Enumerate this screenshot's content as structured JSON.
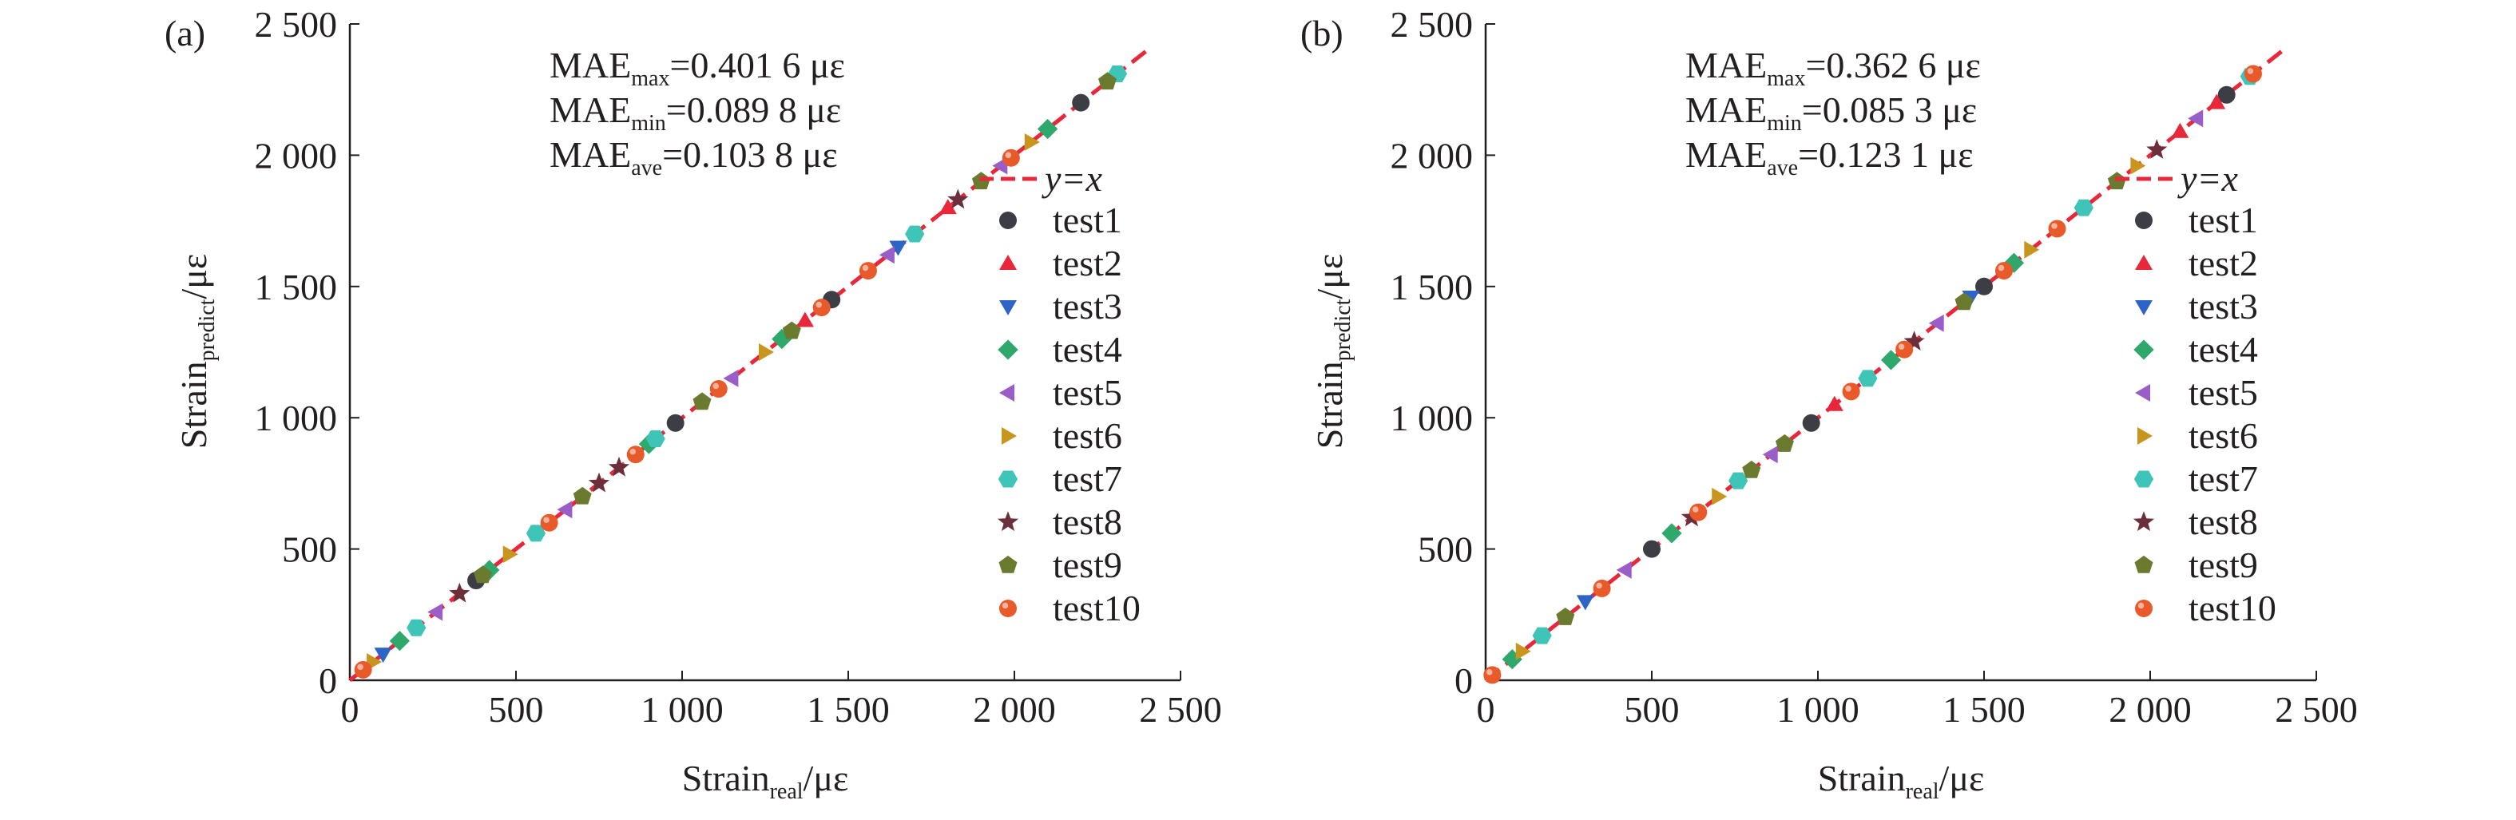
{
  "figure": {
    "panels": [
      {
        "panel_label": "(a)",
        "stats": [
          {
            "base": "MAE",
            "sub": "max",
            "value": "=0.401 6 με"
          },
          {
            "base": "MAE",
            "sub": "min",
            "value": "=0.089 8 με"
          },
          {
            "base": "MAE",
            "sub": "ave",
            "value": "=0.103 8 με"
          }
        ],
        "xlabel": {
          "base": "Strain",
          "sub": "real",
          "unit": "/με"
        },
        "ylabel": {
          "base": "Strain",
          "sub": "predict",
          "unit": "/με"
        }
      },
      {
        "panel_label": "(b)",
        "stats": [
          {
            "base": "MAE",
            "sub": "max",
            "value": "=0.362 6 με"
          },
          {
            "base": "MAE",
            "sub": "min",
            "value": "=0.085 3 με"
          },
          {
            "base": "MAE",
            "sub": "ave",
            "value": "=0.123 1 με"
          }
        ],
        "xlabel": {
          "base": "Strain",
          "sub": "real",
          "unit": "/με"
        },
        "ylabel": {
          "base": "Strain",
          "sub": "predict",
          "unit": "/με"
        }
      }
    ]
  },
  "chart_data": [
    {
      "type": "scatter",
      "xlim": [
        0,
        2500
      ],
      "ylim": [
        0,
        2500
      ],
      "xticks": [
        "0",
        "500",
        "1 000",
        "1 500",
        "2 000",
        "2 500"
      ],
      "yticks": [
        "0",
        "500",
        "1 000",
        "1 500",
        "2 000",
        "2 500"
      ],
      "grid": false,
      "legend_position": "right",
      "reference_line": {
        "name": "y=x",
        "color": "#e8273a",
        "style": "dashed",
        "x": [
          0,
          2400
        ],
        "y": [
          0,
          2400
        ]
      },
      "series": [
        {
          "name": "test1",
          "marker": "circle",
          "color": "#3d3d45",
          "x": [
            380,
            980,
            1450,
            2200
          ],
          "y": [
            380,
            980,
            1450,
            2200
          ]
        },
        {
          "name": "test2",
          "marker": "triangle-up",
          "color": "#e8273a",
          "x": [
            1370,
            1800
          ],
          "y": [
            1370,
            1800
          ]
        },
        {
          "name": "test3",
          "marker": "triangle-down",
          "color": "#2e64c8",
          "x": [
            100,
            1650
          ],
          "y": [
            100,
            1650
          ]
        },
        {
          "name": "test4",
          "marker": "diamond",
          "color": "#2fa86b",
          "x": [
            150,
            420,
            900,
            1300,
            2100
          ],
          "y": [
            150,
            420,
            900,
            1300,
            2100
          ]
        },
        {
          "name": "test5",
          "marker": "triangle-left",
          "color": "#9a5ec8",
          "x": [
            260,
            650,
            1150,
            1620,
            1960
          ],
          "y": [
            260,
            650,
            1150,
            1620,
            1960
          ]
        },
        {
          "name": "test6",
          "marker": "triangle-right",
          "color": "#c8961e",
          "x": [
            70,
            480,
            1250,
            2050
          ],
          "y": [
            70,
            480,
            1250,
            2050
          ]
        },
        {
          "name": "test7",
          "marker": "hexagon",
          "color": "#3fc4b8",
          "x": [
            200,
            560,
            920,
            1700,
            2310
          ],
          "y": [
            200,
            560,
            920,
            1700,
            2310
          ]
        },
        {
          "name": "test8",
          "marker": "star",
          "color": "#6b2f3c",
          "x": [
            330,
            750,
            810,
            1830
          ],
          "y": [
            330,
            750,
            810,
            1830
          ]
        },
        {
          "name": "test9",
          "marker": "pentagon",
          "color": "#6a7a2e",
          "x": [
            400,
            700,
            1060,
            1330,
            1900,
            2280
          ],
          "y": [
            400,
            700,
            1060,
            1330,
            1900,
            2280
          ]
        },
        {
          "name": "test10",
          "marker": "circle-highlight",
          "color": "#e85a2a",
          "x": [
            40,
            600,
            860,
            1110,
            1420,
            1560,
            1990
          ],
          "y": [
            40,
            600,
            860,
            1110,
            1420,
            1560,
            1990
          ]
        }
      ]
    },
    {
      "type": "scatter",
      "xlim": [
        0,
        2500
      ],
      "ylim": [
        0,
        2500
      ],
      "xticks": [
        "0",
        "500",
        "1 000",
        "1 500",
        "2 000",
        "2 500"
      ],
      "yticks": [
        "0",
        "500",
        "1 000",
        "1 500",
        "2 000",
        "2 500"
      ],
      "grid": false,
      "legend_position": "right",
      "reference_line": {
        "name": "y=x",
        "color": "#e8273a",
        "style": "dashed",
        "x": [
          0,
          2400
        ],
        "y": [
          0,
          2400
        ]
      },
      "series": [
        {
          "name": "test1",
          "marker": "circle",
          "color": "#3d3d45",
          "x": [
            500,
            980,
            1500,
            2230
          ],
          "y": [
            500,
            980,
            1500,
            2230
          ]
        },
        {
          "name": "test2",
          "marker": "triangle-up",
          "color": "#e8273a",
          "x": [
            1050,
            2090,
            2200
          ],
          "y": [
            1050,
            2090,
            2200
          ]
        },
        {
          "name": "test3",
          "marker": "triangle-down",
          "color": "#2e64c8",
          "x": [
            300,
            1460
          ],
          "y": [
            300,
            1460
          ]
        },
        {
          "name": "test4",
          "marker": "diamond",
          "color": "#2fa86b",
          "x": [
            80,
            560,
            1220,
            1590
          ],
          "y": [
            80,
            560,
            1220,
            1590
          ]
        },
        {
          "name": "test5",
          "marker": "triangle-left",
          "color": "#9a5ec8",
          "x": [
            420,
            860,
            1360,
            2140
          ],
          "y": [
            420,
            860,
            1360,
            2140
          ]
        },
        {
          "name": "test6",
          "marker": "triangle-right",
          "color": "#c8961e",
          "x": [
            110,
            700,
            1640,
            1960
          ],
          "y": [
            110,
            700,
            1640,
            1960
          ]
        },
        {
          "name": "test7",
          "marker": "hexagon",
          "color": "#3fc4b8",
          "x": [
            170,
            760,
            1150,
            1800,
            2300
          ],
          "y": [
            170,
            760,
            1150,
            1800,
            2300
          ]
        },
        {
          "name": "test8",
          "marker": "star",
          "color": "#6b2f3c",
          "x": [
            620,
            1290,
            2020
          ],
          "y": [
            620,
            1290,
            2020
          ]
        },
        {
          "name": "test9",
          "marker": "pentagon",
          "color": "#6a7a2e",
          "x": [
            240,
            800,
            900,
            1440,
            1900
          ],
          "y": [
            240,
            800,
            900,
            1440,
            1900
          ]
        },
        {
          "name": "test10",
          "marker": "circle-highlight",
          "color": "#e85a2a",
          "x": [
            20,
            350,
            640,
            1100,
            1260,
            1560,
            1720,
            2310
          ],
          "y": [
            20,
            350,
            640,
            1100,
            1260,
            1560,
            1720,
            2310
          ]
        }
      ]
    }
  ]
}
